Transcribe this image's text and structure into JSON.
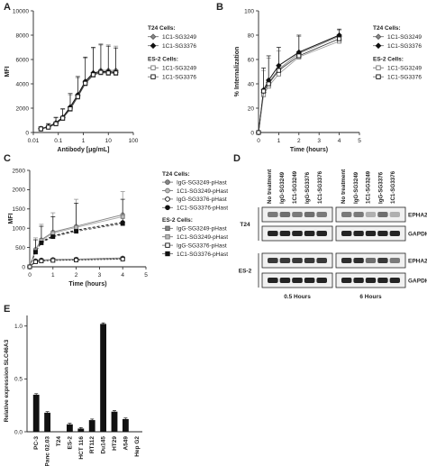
{
  "panels": {
    "a": "A",
    "b": "B",
    "c": "C",
    "d": "D",
    "e": "E"
  },
  "chart_data": [
    {
      "id": "A",
      "type": "line",
      "xscale": "log",
      "xlabel": "Antibody [μg/mL]",
      "ylabel": "MFI",
      "xticks": [
        "0.01",
        "0.1",
        "1",
        "10",
        "100"
      ],
      "xtick_values": [
        0.01,
        0.1,
        1,
        10,
        100
      ],
      "xlim": [
        0.01,
        100
      ],
      "yticks": [
        0,
        2000,
        4000,
        6000,
        8000,
        10000
      ],
      "ylim": [
        0,
        10000
      ],
      "legend_groups": [
        {
          "title": "T24 Cells:",
          "items": [
            {
              "label": "1C1-SG3249",
              "marker": "diamond-gray"
            },
            {
              "label": "1C1-SG3376",
              "marker": "diamond-black"
            }
          ]
        },
        {
          "title": "ES-2 Cells:",
          "items": [
            {
              "label": "1C1-SG3249",
              "marker": "square-open-gray"
            },
            {
              "label": "1C1-SG3376",
              "marker": "square-open-black"
            }
          ]
        }
      ],
      "x": [
        0.02,
        0.04,
        0.08,
        0.15,
        0.3,
        0.6,
        1.2,
        2.5,
        5,
        10,
        20
      ],
      "series": [
        {
          "name": "T24 1C1-SG3249",
          "values": [
            300,
            450,
            750,
            1200,
            2000,
            3000,
            4100,
            4800,
            5100,
            5100,
            5100
          ],
          "err": [
            150,
            250,
            450,
            700,
            1100,
            1500,
            2000,
            2100,
            2200,
            2100,
            2000
          ]
        },
        {
          "name": "T24 1C1-SG3376",
          "values": [
            320,
            480,
            800,
            1250,
            2100,
            3100,
            4200,
            4900,
            5000,
            5000,
            4950
          ],
          "err": [
            150,
            250,
            450,
            700,
            1100,
            1500,
            2000,
            2100,
            2200,
            2100,
            2000
          ]
        },
        {
          "name": "ES-2 1C1-SG3249",
          "values": [
            280,
            420,
            700,
            1150,
            1900,
            2900,
            4000,
            4700,
            4900,
            4850,
            4850
          ],
          "err": [
            0,
            0,
            0,
            0,
            0,
            0,
            0,
            0,
            0,
            0,
            0
          ]
        },
        {
          "name": "ES-2 1C1-SG3376",
          "values": [
            300,
            440,
            720,
            1180,
            1950,
            2950,
            4050,
            4750,
            4950,
            4900,
            4900
          ],
          "err": [
            0,
            0,
            0,
            0,
            0,
            0,
            0,
            0,
            0,
            0,
            0
          ]
        }
      ]
    },
    {
      "id": "B",
      "type": "line",
      "xlabel": "Time (hours)",
      "ylabel": "% Internalization",
      "xticks": [
        "0",
        "1",
        "2",
        "3",
        "4",
        "5"
      ],
      "xtick_values": [
        0,
        1,
        2,
        3,
        4,
        5
      ],
      "xlim": [
        0,
        5
      ],
      "yticks": [
        0,
        20,
        40,
        60,
        80,
        100
      ],
      "ylim": [
        0,
        100
      ],
      "legend_groups": [
        {
          "title": "T24 Cells:",
          "items": [
            {
              "label": "1C1-SG3249",
              "marker": "diamond-gray"
            },
            {
              "label": "1C1-SG3376",
              "marker": "diamond-black"
            }
          ]
        },
        {
          "title": "ES-2 Cells:",
          "items": [
            {
              "label": "1C1-SG3249",
              "marker": "square-open-gray"
            },
            {
              "label": "1C1-SG3376",
              "marker": "square-open-black"
            }
          ]
        }
      ],
      "x": [
        0,
        0.25,
        0.5,
        1,
        2,
        4
      ],
      "series": [
        {
          "name": "T24 1C1-SG3249",
          "values": [
            0,
            33,
            41,
            52,
            65,
            79
          ],
          "err": [
            0,
            18,
            20,
            15,
            14,
            5
          ]
        },
        {
          "name": "T24 1C1-SG3376",
          "values": [
            0,
            35,
            43,
            55,
            66,
            80
          ],
          "err": [
            0,
            18,
            20,
            15,
            14,
            5
          ]
        },
        {
          "name": "ES-2 1C1-SG3249",
          "values": [
            0,
            31,
            38,
            48,
            62,
            75
          ],
          "err": [
            0,
            0,
            0,
            0,
            0,
            0
          ]
        },
        {
          "name": "ES-2 1C1-SG3376",
          "values": [
            0,
            34,
            40,
            51,
            63,
            77
          ],
          "err": [
            0,
            0,
            0,
            0,
            0,
            0
          ]
        }
      ]
    },
    {
      "id": "C",
      "type": "line",
      "xlabel": "Time (hours)",
      "ylabel": "MFI",
      "xticks": [
        "0",
        "1",
        "2",
        "3",
        "4",
        "5"
      ],
      "xtick_values": [
        0,
        1,
        2,
        3,
        4,
        5
      ],
      "xlim": [
        0,
        5
      ],
      "yticks": [
        0,
        500,
        1000,
        1500,
        2000,
        2500
      ],
      "ylim": [
        0,
        2500
      ],
      "legend_groups": [
        {
          "title": "T24 Cells:",
          "items": [
            {
              "label": "IgG-SG3249-pHast",
              "marker": "circle-gray"
            },
            {
              "label": "1C1-SG3249-pHast",
              "marker": "circle-lightgray"
            },
            {
              "label": "IgG-SG3376-pHast",
              "marker": "circle-open-black"
            },
            {
              "label": "1C1-SG3376-pHast",
              "marker": "circle-black"
            }
          ]
        },
        {
          "title": "ES-2 Cells:",
          "items": [
            {
              "label": "IgG-SG3249-pHast",
              "marker": "square-gray"
            },
            {
              "label": "1C1-SG3249-pHast",
              "marker": "square-lightgray"
            },
            {
              "label": "IgG-SG3376-pHast",
              "marker": "square-open-black"
            },
            {
              "label": "1C1-SG3376-pHast",
              "marker": "square-black"
            }
          ]
        }
      ],
      "x": [
        0,
        0.25,
        0.5,
        1,
        2,
        4
      ],
      "series": [
        {
          "name": "T24 1C1-SG3249-pHast",
          "style": "solid-gray",
          "values": [
            0,
            450,
            700,
            900,
            1050,
            1350
          ],
          "err": [
            0,
            300,
            400,
            500,
            700,
            600
          ]
        },
        {
          "name": "T24 1C1-SG3376-pHast",
          "style": "dash-black",
          "values": [
            0,
            400,
            650,
            800,
            950,
            1150
          ],
          "err": [
            0,
            300,
            400,
            500,
            700,
            600
          ]
        },
        {
          "name": "ES-2 1C1-SG3249-pHast",
          "style": "solid-lightgray",
          "values": [
            0,
            420,
            680,
            870,
            1020,
            1300
          ],
          "err": [
            0,
            0,
            0,
            0,
            0,
            0
          ]
        },
        {
          "name": "ES-2 1C1-SG3376-pHast",
          "style": "dash-darkgray",
          "values": [
            0,
            380,
            620,
            780,
            920,
            1120
          ],
          "err": [
            0,
            0,
            0,
            0,
            0,
            0
          ]
        },
        {
          "name": "T24 IgG-SG3249-pHast",
          "style": "flat-gray",
          "values": [
            0,
            160,
            180,
            190,
            200,
            230
          ],
          "err": [
            0,
            0,
            0,
            0,
            0,
            0
          ]
        },
        {
          "name": "T24 IgG-SG3376-pHast",
          "style": "flat-black",
          "values": [
            0,
            150,
            170,
            180,
            190,
            220
          ],
          "err": [
            0,
            0,
            0,
            0,
            0,
            0
          ]
        },
        {
          "name": "ES-2 IgG-SG3249-pHast",
          "style": "flat-gray",
          "values": [
            0,
            140,
            160,
            175,
            185,
            210
          ],
          "err": [
            0,
            0,
            0,
            0,
            0,
            0
          ]
        },
        {
          "name": "ES-2 IgG-SG3376-pHast",
          "style": "flat-black",
          "values": [
            0,
            130,
            150,
            165,
            175,
            200
          ],
          "err": [
            0,
            0,
            0,
            0,
            0,
            0
          ]
        }
      ]
    },
    {
      "id": "E",
      "type": "bar",
      "ylabel": "Relative expression SLC46A3",
      "categories": [
        "PC-3",
        "Panc 02.03",
        "T24",
        "ES-2",
        "HCT 116",
        "RT112",
        "Du145",
        "HT29",
        "A549",
        "Hep G2"
      ],
      "values": [
        0.35,
        0.18,
        0.0,
        0.07,
        0.03,
        0.11,
        1.02,
        0.19,
        0.12,
        0.0
      ],
      "err": [
        0.01,
        0.01,
        0.0,
        0.01,
        0.01,
        0.01,
        0.01,
        0.01,
        0.01,
        0.0
      ],
      "yticks": [
        "0.0",
        "0.5",
        "1.0"
      ],
      "ytick_values": [
        0,
        0.5,
        1.0
      ],
      "ylim": [
        0,
        1.1
      ]
    }
  ],
  "blot": {
    "lanes": [
      "No treatment",
      "IgG-SG3249",
      "1C1-SG3249",
      "IgG-SG3376",
      "1C1-SG3376"
    ],
    "rows": [
      {
        "cell": "T24",
        "bands": [
          "EPHA2",
          "GAPDH"
        ]
      },
      {
        "cell": "ES-2",
        "bands": [
          "EPHA2",
          "GAPDH"
        ]
      }
    ],
    "timepoints": [
      "0.5 Hours",
      "6 Hours"
    ],
    "intensity": {
      "t24_epha2_05": [
        0.55,
        0.6,
        0.55,
        0.6,
        0.55
      ],
      "t24_epha2_6": [
        0.55,
        0.55,
        0.3,
        0.6,
        0.3
      ],
      "es2_epha2_05": [
        0.85,
        0.85,
        0.85,
        0.85,
        0.85
      ],
      "es2_epha2_6": [
        0.9,
        0.9,
        0.6,
        0.85,
        0.55
      ],
      "gapdh": [
        0.95,
        0.95,
        0.95,
        0.95,
        0.95
      ]
    }
  }
}
